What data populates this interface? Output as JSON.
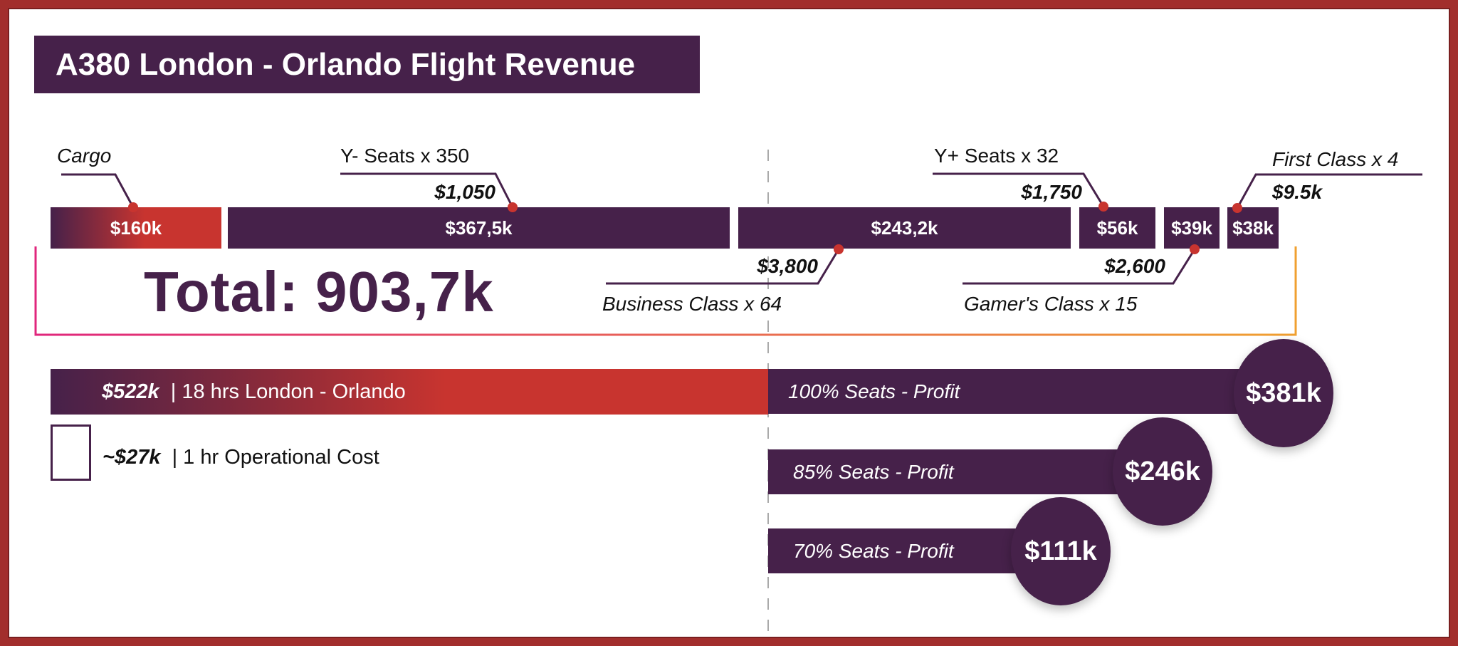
{
  "title": "A380 London - Orlando Flight Revenue",
  "colors": {
    "purple": "#46214a",
    "red": "#c8342f",
    "bracket_start": "#e0267c",
    "bracket_end": "#f0a030"
  },
  "segments": [
    {
      "name": "Cargo",
      "price": "",
      "total": "$160k"
    },
    {
      "name": "Y- Seats x 350",
      "price": "$1,050",
      "total": "$367,5k"
    },
    {
      "name": "Business Class x 64",
      "price": "$3,800",
      "total": "$243,2k"
    },
    {
      "name": "Y+ Seats x 32",
      "price": "$1,750",
      "total": "$56k"
    },
    {
      "name": "Gamer's Class x 15",
      "price": "$2,600",
      "total": "$39k"
    },
    {
      "name": "First Class x 4",
      "price": "$9.5k",
      "total": "$38k"
    }
  ],
  "total": "Total: 903,7k",
  "cost": {
    "amount": "$522k",
    "desc": "| 18 hrs London - Orlando"
  },
  "hourly": {
    "amount": "~$27k",
    "desc": "| 1 hr Operational Cost"
  },
  "profits": [
    {
      "label": "100% Seats - Profit",
      "value": "$381k"
    },
    {
      "label": "85% Seats - Profit",
      "value": "$246k"
    },
    {
      "label": "70% Seats - Profit",
      "value": "$111k"
    }
  ]
}
